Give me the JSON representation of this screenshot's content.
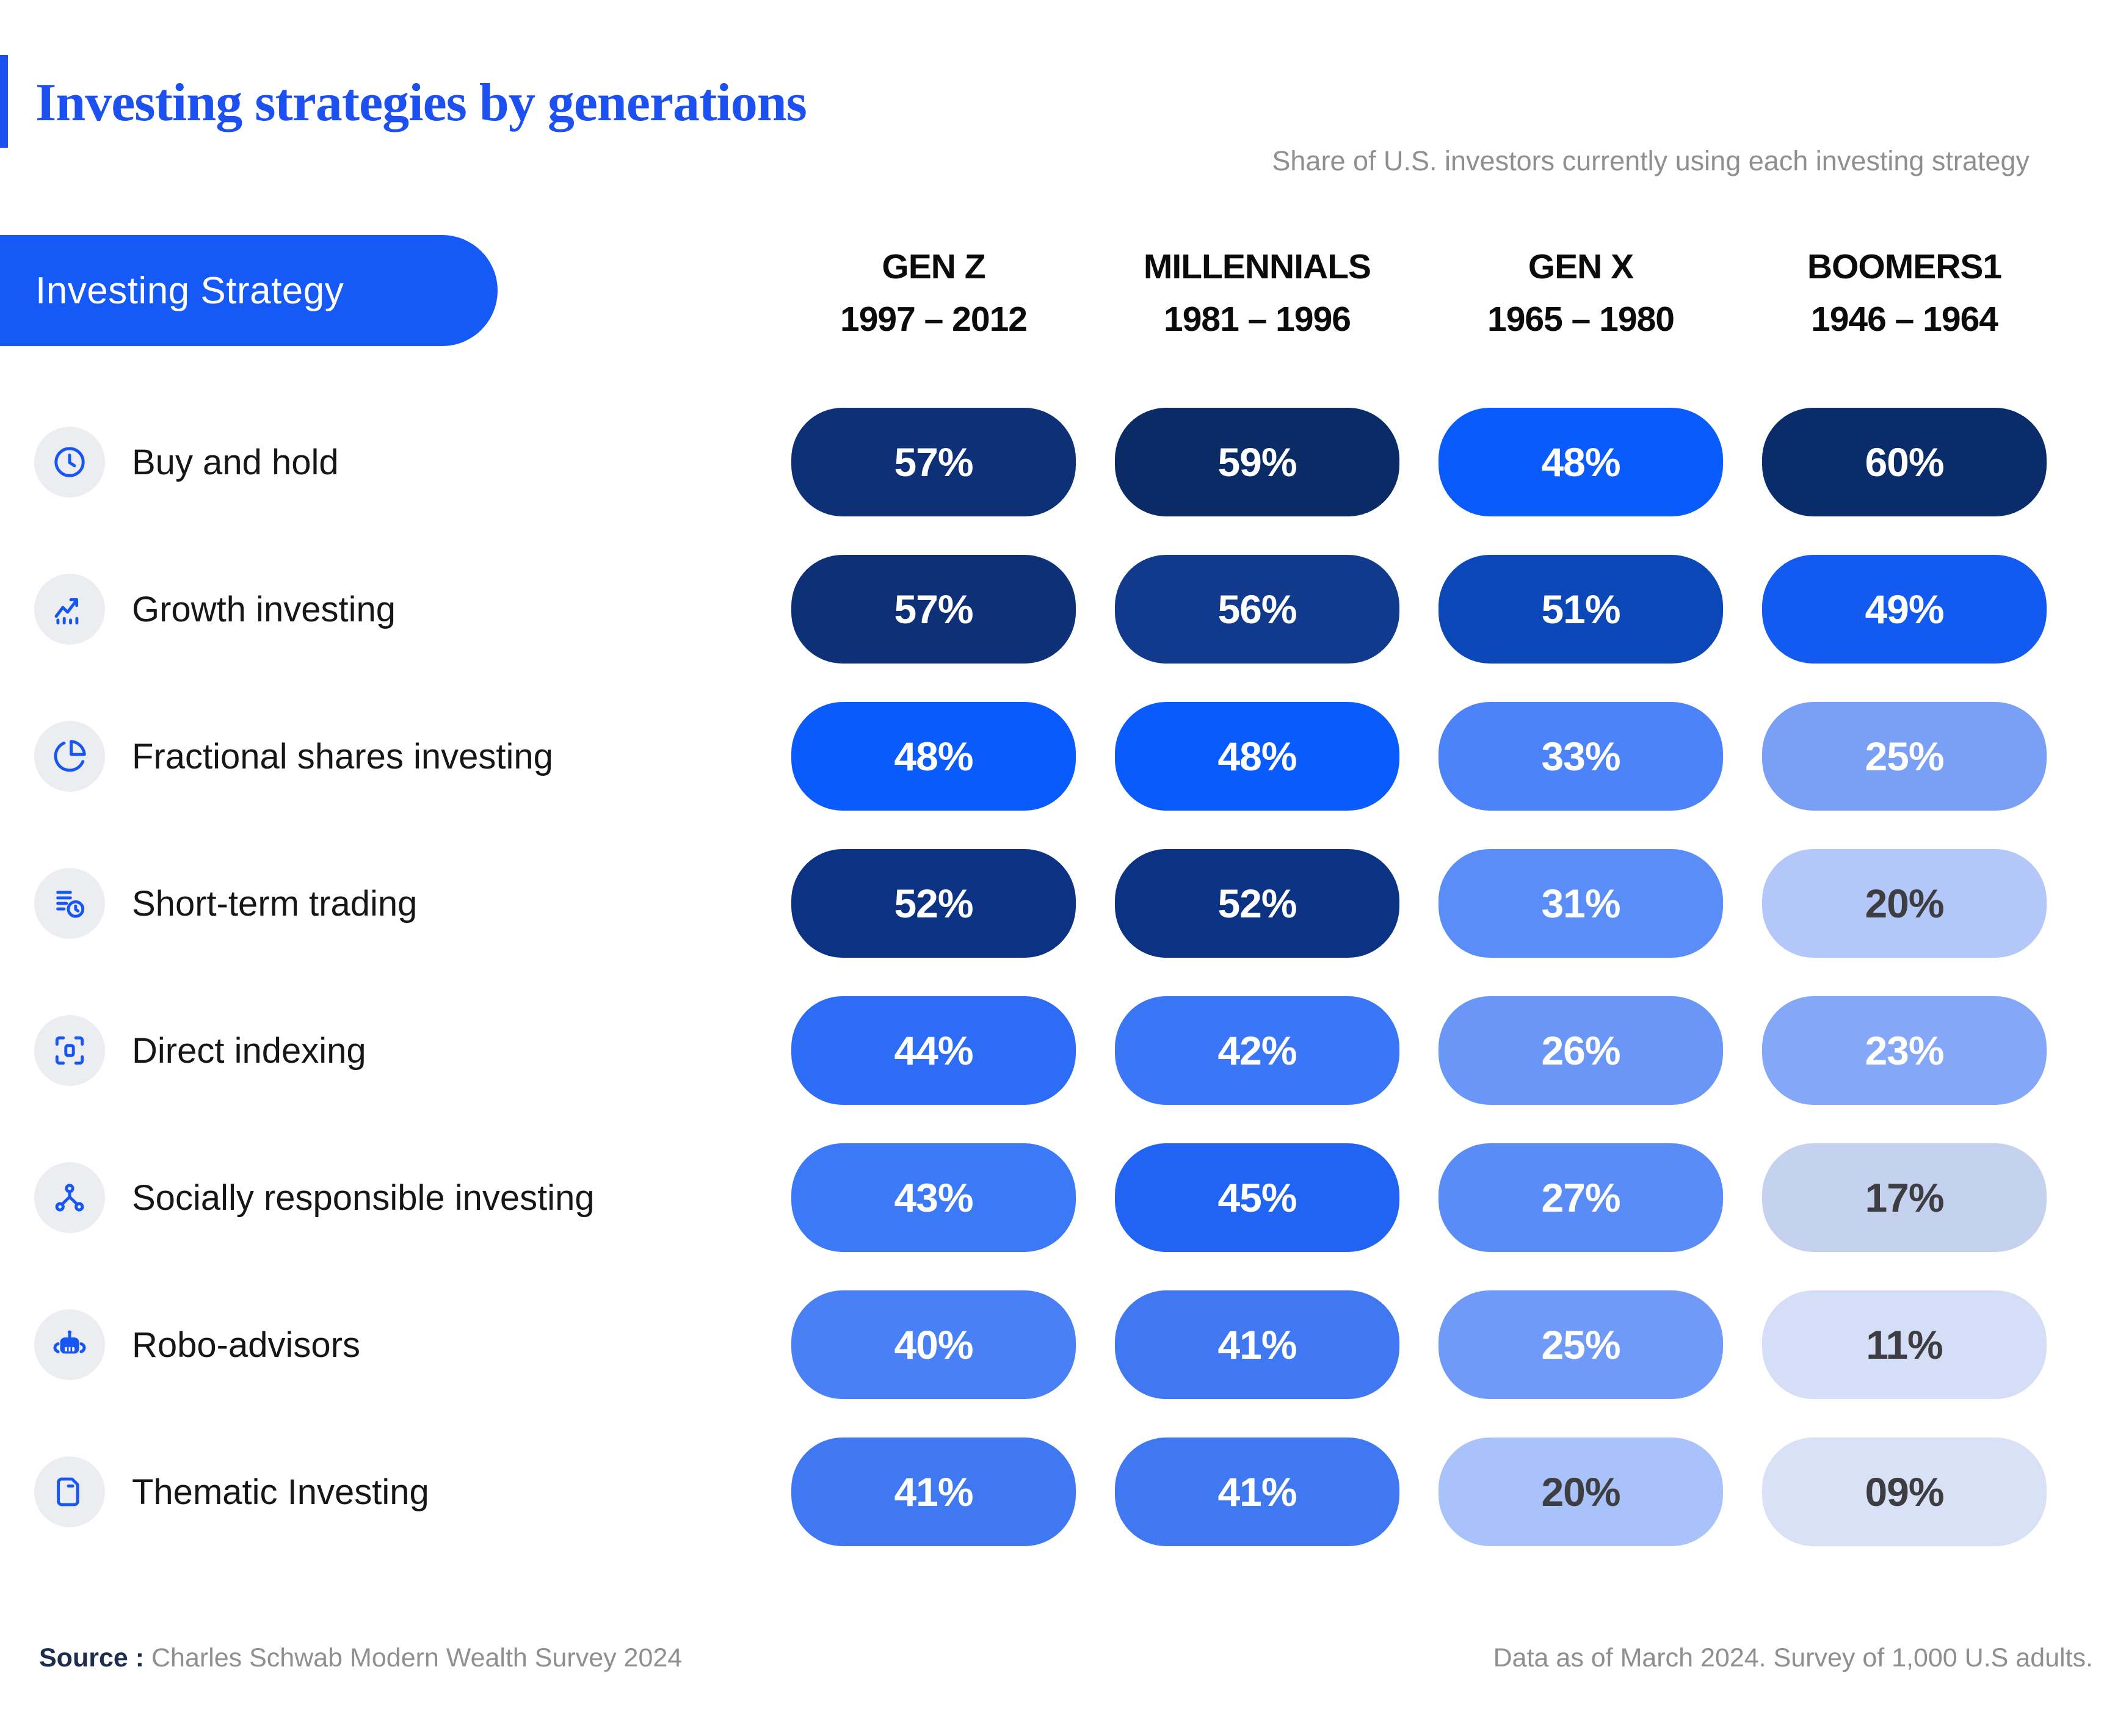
{
  "header": {
    "title": "Investing strategies by generations",
    "subtitle": "Share of U.S. investors currently using each investing strategy",
    "column_header_label": "Investing Strategy",
    "columns": [
      {
        "name": "GEN Z",
        "years": "1997 – 2012"
      },
      {
        "name": "MILLENNIALS",
        "years": "1981 – 1996"
      },
      {
        "name": "GEN X",
        "years": "1965 – 1980"
      },
      {
        "name": "BOOMERS1",
        "years": "1946 – 1964"
      }
    ]
  },
  "colors": {
    "accent_blue": "#1B50F1",
    "header_pill_bg": "#155AF7",
    "icon_blue": "#1656F2",
    "icon_circle_bg": "#ECEDF0",
    "title_text": "#1D50F0",
    "subtitle_text": "#8F8F8F",
    "source_label_text": "#1E2D4D",
    "dark_value_text": "#3E3E42"
  },
  "strategies": [
    {
      "label": "Buy and hold",
      "icon": "clock-icon",
      "cells": [
        {
          "text": "57%",
          "bg": "#0D3077",
          "fg": "#FFFFFF"
        },
        {
          "text": "59%",
          "bg": "#0A2B66",
          "fg": "#FFFFFF"
        },
        {
          "text": "48%",
          "bg": "#0A5BFE",
          "fg": "#FFFFFF"
        },
        {
          "text": "60%",
          "bg": "#0A2C6A",
          "fg": "#FFFFFF"
        }
      ]
    },
    {
      "label": "Growth investing",
      "icon": "growth-chart-icon",
      "cells": [
        {
          "text": "57%",
          "bg": "#0D3077",
          "fg": "#FFFFFF"
        },
        {
          "text": "56%",
          "bg": "#113A8C",
          "fg": "#FFFFFF"
        },
        {
          "text": "51%",
          "bg": "#0C47B8",
          "fg": "#FFFFFF"
        },
        {
          "text": "49%",
          "bg": "#135AF0",
          "fg": "#FFFFFF"
        }
      ]
    },
    {
      "label": "Fractional shares investing",
      "icon": "pie-chart-icon",
      "cells": [
        {
          "text": "48%",
          "bg": "#0A5BFE",
          "fg": "#FFFFFF"
        },
        {
          "text": "48%",
          "bg": "#0A5BFE",
          "fg": "#FFFFFF"
        },
        {
          "text": "33%",
          "bg": "#4C83F8",
          "fg": "#FFFFFF"
        },
        {
          "text": "25%",
          "bg": "#7AA0F6",
          "fg": "#FFFFFF"
        }
      ]
    },
    {
      "label": "Short-term trading",
      "icon": "document-clock-icon",
      "cells": [
        {
          "text": "52%",
          "bg": "#0C3284",
          "fg": "#FFFFFF"
        },
        {
          "text": "52%",
          "bg": "#0C3284",
          "fg": "#FFFFFF"
        },
        {
          "text": "31%",
          "bg": "#5A8DF8",
          "fg": "#FFFFFF"
        },
        {
          "text": "20%",
          "bg": "#B3C8F8",
          "fg": "#3E3E42"
        }
      ]
    },
    {
      "label": "Direct indexing",
      "icon": "focus-frame-icon",
      "cells": [
        {
          "text": "44%",
          "bg": "#2D6DF5",
          "fg": "#FFFFFF"
        },
        {
          "text": "42%",
          "bg": "#3A76F6",
          "fg": "#FFFFFF"
        },
        {
          "text": "26%",
          "bg": "#6A97F7",
          "fg": "#FFFFFF"
        },
        {
          "text": "23%",
          "bg": "#84A8F7",
          "fg": "#FFFFFF"
        }
      ]
    },
    {
      "label": "Socially responsible investing",
      "icon": "network-icon",
      "cells": [
        {
          "text": "43%",
          "bg": "#3C79F6",
          "fg": "#FFFFFF"
        },
        {
          "text": "45%",
          "bg": "#2163F2",
          "fg": "#FFFFFF"
        },
        {
          "text": "27%",
          "bg": "#5A8CF7",
          "fg": "#FFFFFF"
        },
        {
          "text": "17%",
          "bg": "#C5D2EF",
          "fg": "#3E3E42"
        }
      ]
    },
    {
      "label": "Robo-advisors",
      "icon": "robot-icon",
      "cells": [
        {
          "text": "40%",
          "bg": "#4A80F5",
          "fg": "#FFFFFF"
        },
        {
          "text": "41%",
          "bg": "#4078F2",
          "fg": "#FFFFFF"
        },
        {
          "text": "25%",
          "bg": "#6F9AF8",
          "fg": "#FFFFFF"
        },
        {
          "text": "11%",
          "bg": "#D4DEF7",
          "fg": "#3E3E42"
        }
      ]
    },
    {
      "label": "Thematic Investing",
      "icon": "folder-icon",
      "cells": [
        {
          "text": "41%",
          "bg": "#4078F2",
          "fg": "#FFFFFF"
        },
        {
          "text": "41%",
          "bg": "#4078F2",
          "fg": "#FFFFFF"
        },
        {
          "text": "20%",
          "bg": "#A9C3FA",
          "fg": "#3E3E42"
        },
        {
          "text": "09%",
          "bg": "#D8E1F5",
          "fg": "#3E3E42"
        }
      ]
    }
  ],
  "chart_data": {
    "type": "heatmap",
    "title": "Investing strategies by generations",
    "subtitle": "Share of U.S. investors currently using each investing strategy",
    "unit": "%",
    "columns": [
      "GEN Z 1997 – 2012",
      "MILLENNIALS 1981 – 1996",
      "GEN X 1965 – 1980",
      "BOOMERS1 1946 – 1964"
    ],
    "rows": [
      "Buy and hold",
      "Growth investing",
      "Fractional shares investing",
      "Short-term trading",
      "Direct indexing",
      "Socially responsible investing",
      "Robo-advisors",
      "Thematic Investing"
    ],
    "values": [
      [
        57,
        59,
        48,
        60
      ],
      [
        57,
        56,
        51,
        49
      ],
      [
        48,
        48,
        33,
        25
      ],
      [
        52,
        52,
        31,
        20
      ],
      [
        44,
        42,
        26,
        23
      ],
      [
        43,
        45,
        27,
        17
      ],
      [
        40,
        41,
        25,
        11
      ],
      [
        41,
        41,
        20,
        9
      ]
    ],
    "color_scale": "higher value = darker navy blue, lower value = lighter blue"
  },
  "footer": {
    "source_label": "Source :",
    "source_text": "Charles Schwab Modern Wealth Survey 2024",
    "note": "Data as of March 2024. Survey of 1,000 U.S adults."
  }
}
